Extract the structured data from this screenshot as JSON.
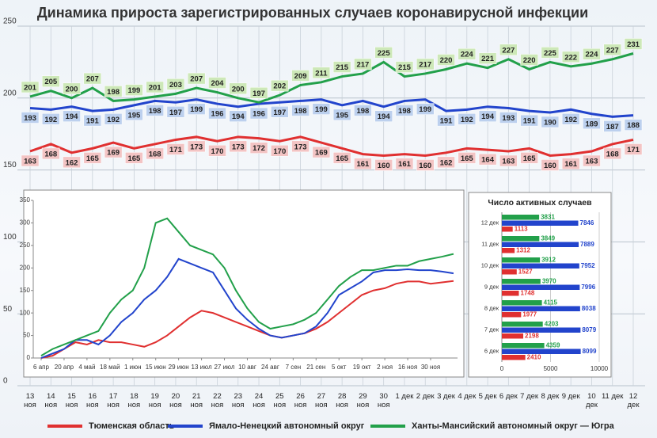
{
  "chart_data": [
    {
      "type": "line",
      "title": "Динамика прироста зарегистрированных случаев коронавирусной инфекции",
      "categories": [
        "13 ноя",
        "14 ноя",
        "15 ноя",
        "16 ноя",
        "17 ноя",
        "18 ноя",
        "19 ноя",
        "20 ноя",
        "21 ноя",
        "22 ноя",
        "23 ноя",
        "24 ноя",
        "25 ноя",
        "26 ноя",
        "27 ноя",
        "28 ноя",
        "29 ноя",
        "30 ноя",
        "1 дек",
        "2 дек",
        "3 дек",
        "4 дек",
        "5 дек",
        "6 дек",
        "7 дек",
        "8 дек",
        "9 дек",
        "10 дек",
        "11 дек",
        "12 дек"
      ],
      "ylim": [
        0,
        250
      ],
      "yticks": [
        0,
        50,
        100,
        150,
        200,
        250
      ],
      "grid": true,
      "legend": "bottom",
      "series": [
        {
          "name": "Тюменская область",
          "color": "#e03030",
          "values": [
            163,
            168,
            162,
            165,
            169,
            165,
            168,
            171,
            173,
            170,
            173,
            172,
            170,
            173,
            169,
            165,
            161,
            160,
            161,
            160,
            162,
            165,
            164,
            163,
            165,
            160,
            161,
            163,
            168,
            171
          ]
        },
        {
          "name": "Ямало-Ненецкий автономный округ",
          "color": "#2244cc",
          "values": [
            193,
            192,
            194,
            191,
            192,
            195,
            198,
            197,
            199,
            196,
            194,
            196,
            197,
            198,
            199,
            195,
            198,
            194,
            198,
            199,
            191,
            192,
            194,
            193,
            191,
            190,
            192,
            189,
            187,
            188
          ]
        },
        {
          "name": "Ханты-Мансийский автономный округ — Югра",
          "color": "#22a04a",
          "values": [
            201,
            205,
            200,
            207,
            198,
            199,
            201,
            203,
            207,
            204,
            200,
            197,
            202,
            209,
            211,
            215,
            217,
            225,
            215,
            217,
            220,
            224,
            221,
            227,
            220,
            225,
            222,
            224,
            227,
            231
          ]
        }
      ]
    },
    {
      "type": "line",
      "categories": [
        "6 апр",
        null,
        "20 апр",
        null,
        "4 май",
        null,
        "18 май",
        null,
        "1 июн",
        null,
        "15 июн",
        null,
        "29 июн",
        null,
        "13 июл",
        null,
        "27 июл",
        null,
        "10 авг",
        null,
        "24 авг",
        null,
        "7 сен",
        null,
        "21 сен",
        null,
        "5 окт",
        null,
        "19 окт",
        null,
        "2 ноя",
        null,
        "16 ноя",
        null,
        "30 ноя",
        null,
        null
      ],
      "ylim": [
        0,
        350
      ],
      "yticks": [
        0,
        50,
        100,
        150,
        200,
        250,
        300,
        350
      ],
      "series": [
        {
          "color": "#e03030",
          "values": [
            0,
            5,
            20,
            35,
            30,
            40,
            35,
            35,
            30,
            25,
            35,
            50,
            70,
            90,
            105,
            100,
            90,
            80,
            70,
            60,
            50,
            45,
            50,
            55,
            65,
            80,
            100,
            120,
            140,
            150,
            155,
            165,
            170,
            170,
            165,
            168,
            171
          ]
        },
        {
          "color": "#2244cc",
          "values": [
            0,
            10,
            20,
            40,
            40,
            30,
            50,
            80,
            100,
            130,
            150,
            180,
            220,
            210,
            200,
            190,
            150,
            110,
            85,
            65,
            50,
            45,
            50,
            55,
            70,
            100,
            140,
            155,
            170,
            190,
            195,
            195,
            197,
            195,
            195,
            192,
            188
          ]
        },
        {
          "color": "#22a04a",
          "values": [
            5,
            20,
            30,
            40,
            50,
            60,
            100,
            130,
            150,
            200,
            300,
            310,
            280,
            250,
            240,
            230,
            200,
            150,
            110,
            80,
            65,
            70,
            75,
            85,
            100,
            130,
            160,
            180,
            195,
            195,
            200,
            205,
            205,
            215,
            220,
            225,
            231
          ]
        }
      ]
    },
    {
      "type": "bar",
      "orientation": "horizontal",
      "title": "Число активных случаев",
      "categories": [
        "12 дек",
        "11 дек",
        "10 дек",
        "9 дек",
        "8 дек",
        "7 дек",
        "6 дек"
      ],
      "xlim": [
        0,
        10000
      ],
      "xticks": [
        0,
        5000,
        10000
      ],
      "grid": true,
      "series": [
        {
          "color": "#22a04a",
          "values": [
            3831,
            3849,
            3912,
            3970,
            4115,
            4203,
            4359
          ]
        },
        {
          "color": "#2244cc",
          "values": [
            7846,
            7889,
            7952,
            7996,
            8038,
            8079,
            8099
          ]
        },
        {
          "color": "#e03030",
          "values": [
            1113,
            1312,
            1527,
            1748,
            1977,
            2198,
            2410
          ]
        }
      ]
    }
  ]
}
